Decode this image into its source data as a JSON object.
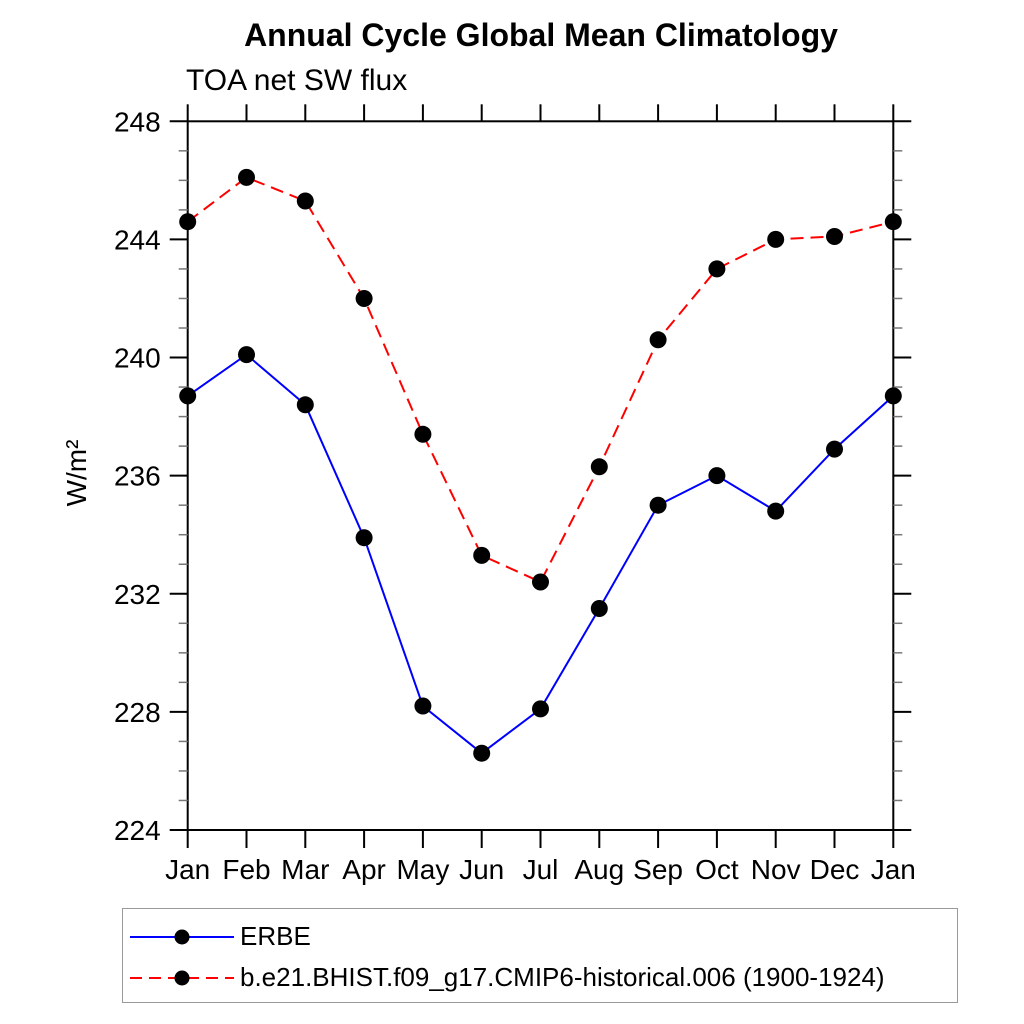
{
  "page": {
    "background": "#ffffff",
    "text_color": "#000000"
  },
  "chart_data": {
    "type": "line",
    "title": "Annual Cycle Global Mean Climatology",
    "subtitle": "TOA net SW flux",
    "ylabel": "W/m²",
    "xlabel": "",
    "x_tick_labels": [
      "Jan",
      "Feb",
      "Mar",
      "Apr",
      "May",
      "Jun",
      "Jul",
      "Aug",
      "Sep",
      "Oct",
      "Nov",
      "Dec",
      "Jan"
    ],
    "ylim": [
      224,
      248
    ],
    "y_major_ticks": [
      224,
      228,
      232,
      236,
      240,
      244,
      248
    ],
    "y_minor_step": 1,
    "grid": false,
    "frame": "box-with-outward-ticks",
    "axis_color": "#000000",
    "minor_tick_color": "#777777",
    "marker_color": "#000000",
    "legend_position": "bottom-left",
    "series": [
      {
        "name": "ERBE",
        "color": "#0000ff",
        "line_style": "solid",
        "marker": "filled-circle",
        "values": [
          238.7,
          240.1,
          238.4,
          233.9,
          228.2,
          226.6,
          228.1,
          231.5,
          235.0,
          236.0,
          234.8,
          236.9,
          238.7
        ]
      },
      {
        "name": "b.e21.BHIST.f09_g17.CMIP6-historical.006 (1900-1924)",
        "color": "#ff0000",
        "line_style": "dashed",
        "marker": "filled-circle",
        "values": [
          244.6,
          246.1,
          245.3,
          242.0,
          237.4,
          233.3,
          232.4,
          236.3,
          240.6,
          243.0,
          244.0,
          244.1,
          244.6
        ]
      }
    ]
  }
}
